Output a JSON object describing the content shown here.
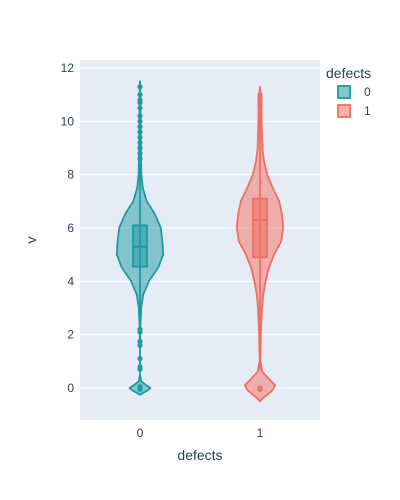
{
  "chart_data": {
    "type": "violin",
    "xlabel": "defects",
    "ylabel": "v",
    "ylim": [
      -1.2,
      12.3
    ],
    "y_ticks": [
      0,
      2,
      4,
      6,
      8,
      10,
      12
    ],
    "categories": [
      "0",
      "1"
    ],
    "legend_title": "defects",
    "legend_position": "top-right",
    "grid": true,
    "series": [
      {
        "name": "0",
        "color": "#1f9aa3",
        "box": {
          "q1": 4.55,
          "median": 5.3,
          "q3": 6.1,
          "whisker_low": 2.25,
          "whisker_high": 8.4
        },
        "density": [
          [
            -0.25,
            0.0
          ],
          [
            -0.1,
            0.18
          ],
          [
            0.0,
            0.26
          ],
          [
            0.1,
            0.16
          ],
          [
            0.25,
            0.03
          ],
          [
            0.5,
            0.0
          ],
          [
            1.5,
            0.0
          ],
          [
            2.2,
            0.008
          ],
          [
            3.0,
            0.03
          ],
          [
            3.5,
            0.08
          ],
          [
            4.0,
            0.22
          ],
          [
            4.5,
            0.45
          ],
          [
            5.0,
            0.58
          ],
          [
            5.5,
            0.56
          ],
          [
            6.0,
            0.52
          ],
          [
            6.5,
            0.38
          ],
          [
            7.0,
            0.17
          ],
          [
            7.5,
            0.07
          ],
          [
            8.0,
            0.035
          ],
          [
            9.0,
            0.02
          ],
          [
            10.0,
            0.015
          ],
          [
            11.0,
            0.01
          ],
          [
            11.5,
            0.0
          ]
        ],
        "outliers": [
          -0.05,
          0.0,
          0.05,
          0.7,
          0.8,
          1.1,
          1.6,
          1.75,
          2.1,
          2.2,
          8.6,
          8.8,
          9.0,
          9.2,
          9.4,
          9.6,
          9.8,
          10.0,
          10.2,
          10.5,
          10.7,
          10.8,
          11.0,
          11.3
        ]
      },
      {
        "name": "1",
        "color": "#f26f61",
        "box": {
          "q1": 4.9,
          "median": 6.3,
          "q3": 7.1,
          "whisker_low": 0.7,
          "whisker_high": 10.6
        },
        "density": [
          [
            -0.5,
            0.0
          ],
          [
            -0.35,
            0.1
          ],
          [
            -0.1,
            0.3
          ],
          [
            0.1,
            0.38
          ],
          [
            0.3,
            0.25
          ],
          [
            0.6,
            0.06
          ],
          [
            1.0,
            0.01
          ],
          [
            2.0,
            0.02
          ],
          [
            3.0,
            0.05
          ],
          [
            3.5,
            0.08
          ],
          [
            4.0,
            0.14
          ],
          [
            4.5,
            0.22
          ],
          [
            5.0,
            0.35
          ],
          [
            5.5,
            0.53
          ],
          [
            6.0,
            0.58
          ],
          [
            6.5,
            0.55
          ],
          [
            7.0,
            0.48
          ],
          [
            7.5,
            0.32
          ],
          [
            8.0,
            0.18
          ],
          [
            8.5,
            0.1
          ],
          [
            9.0,
            0.06
          ],
          [
            10.0,
            0.04
          ],
          [
            10.8,
            0.035
          ],
          [
            11.3,
            0.0
          ]
        ],
        "outliers": [
          -0.05,
          0.0,
          10.5,
          10.6,
          10.7,
          10.8,
          10.9,
          11.0
        ]
      }
    ]
  }
}
